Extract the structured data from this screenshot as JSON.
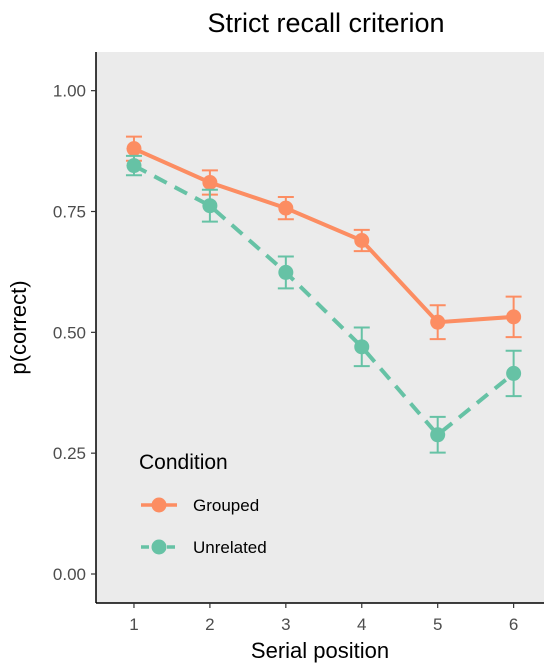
{
  "chart_data": {
    "type": "line",
    "title": "Strict recall criterion",
    "xlabel": "Serial position",
    "ylabel": "p(correct)",
    "x": [
      1,
      2,
      3,
      4,
      5,
      6
    ],
    "xlim": [
      0.5,
      6.4
    ],
    "ylim": [
      -0.06,
      1.08
    ],
    "yticks": [
      "0.00",
      "0.25",
      "0.50",
      "0.75",
      "1.00"
    ],
    "xticks": [
      "1",
      "2",
      "3",
      "4",
      "5",
      "6"
    ],
    "grid": false,
    "legend": {
      "title": "Condition",
      "placement": "bottom-left"
    },
    "series": [
      {
        "name": "Grouped",
        "color": "#fc8d62",
        "line_style": "solid",
        "values": [
          0.88,
          0.81,
          0.757,
          0.69,
          0.521,
          0.532
        ],
        "error": [
          0.025,
          0.025,
          0.023,
          0.022,
          0.035,
          0.042
        ]
      },
      {
        "name": "Unrelated",
        "color": "#66c2a5",
        "line_style": "dashed",
        "values": [
          0.845,
          0.762,
          0.624,
          0.47,
          0.288,
          0.415
        ],
        "error": [
          0.02,
          0.033,
          0.033,
          0.04,
          0.037,
          0.047
        ]
      }
    ]
  }
}
